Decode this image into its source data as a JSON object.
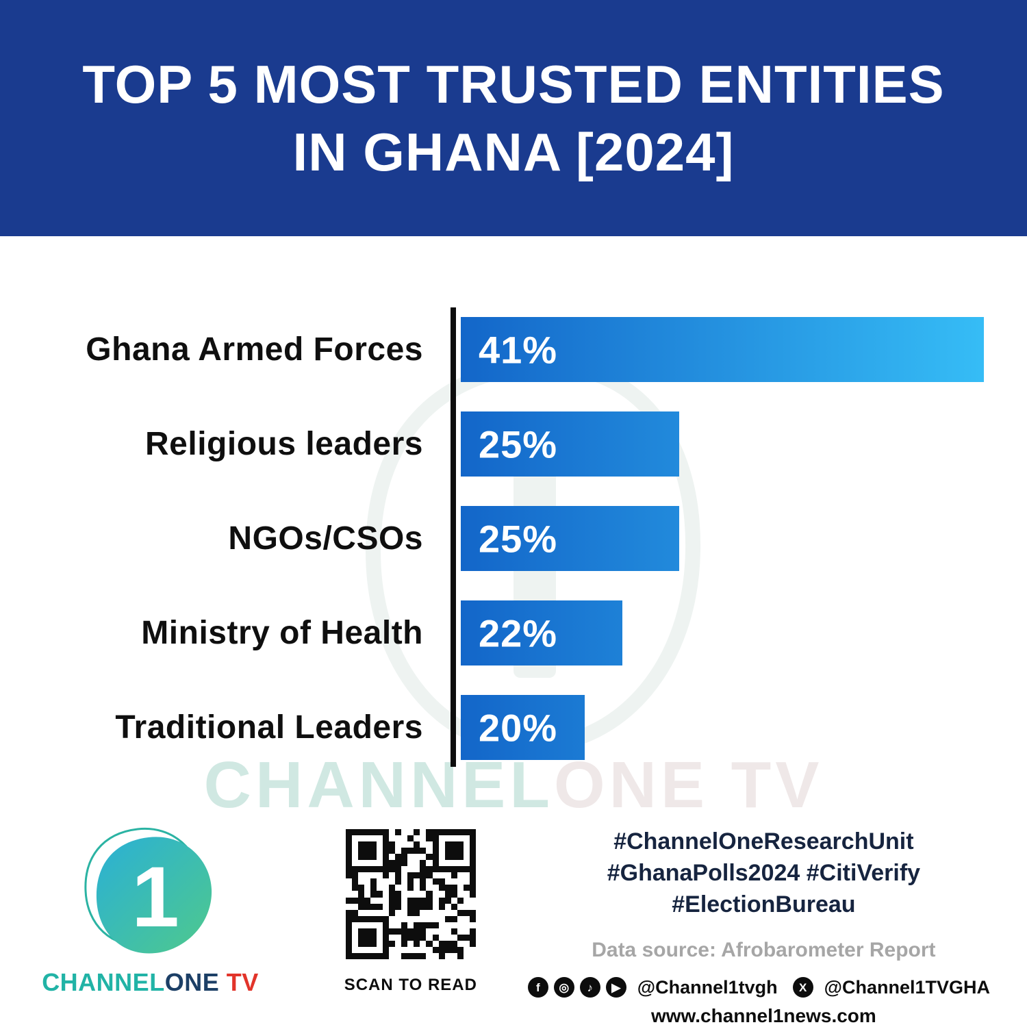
{
  "header": {
    "title": "TOP 5 MOST TRUSTED ENTITIES IN GHANA [2024]"
  },
  "chart_data": {
    "type": "bar",
    "orientation": "horizontal",
    "title": "TOP 5 MOST TRUSTED ENTITIES IN GHANA [2024]",
    "categories": [
      "Ghana Armed Forces",
      "Religious leaders",
      "NGOs/CSOs",
      "Ministry of Health",
      "Traditional Leaders"
    ],
    "values": [
      41,
      25,
      25,
      22,
      20
    ],
    "value_labels": [
      "41%",
      "25%",
      "25%",
      "22%",
      "20%"
    ],
    "xlim": [
      0,
      41
    ],
    "grid": false,
    "legend": "none",
    "display_scale": {
      "baseline_offset": 13.5,
      "max_value": 41
    }
  },
  "watermark": {
    "part1": "CHANNEL",
    "part2": "ONE TV"
  },
  "footer": {
    "logo": {
      "numeral": "1",
      "brand_channel": "CHANNEL",
      "brand_one": "ONE",
      "brand_tv": " TV"
    },
    "qr_caption": "SCAN TO READ",
    "hashtags_line1": "#ChannelOneResearchUnit",
    "hashtags_line2": "#GhanaPolls2024 #CitiVerify",
    "hashtags_line3": "#ElectionBureau",
    "data_source": "Data source: Afrobarometer Report",
    "social_icons": [
      {
        "name": "facebook-icon",
        "glyph": "f"
      },
      {
        "name": "instagram-icon",
        "glyph": "◎"
      },
      {
        "name": "tiktok-icon",
        "glyph": "♪"
      },
      {
        "name": "youtube-icon",
        "glyph": "▶"
      }
    ],
    "x_icon": {
      "name": "x-icon",
      "glyph": "X"
    },
    "handle1": "@Channel1tvgh",
    "handle2": "@Channel1TVGHA",
    "website": "www.channel1news.com"
  },
  "colors": {
    "header_bg": "#1a3b8f",
    "bar_gradient_start": "#1366c9",
    "bar_gradient_end": "#36bdf6",
    "brand_teal": "#21b3a6",
    "brand_navy": "#1c3f66",
    "brand_red": "#e2342a"
  }
}
